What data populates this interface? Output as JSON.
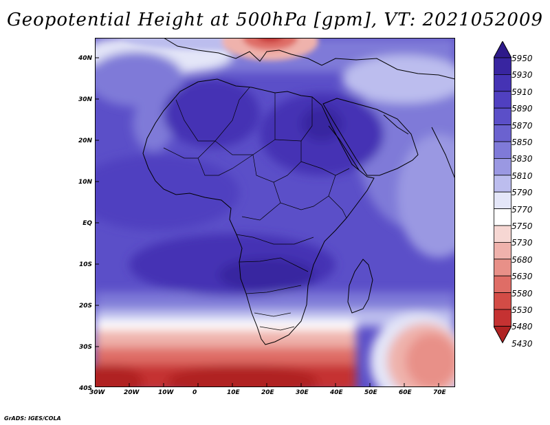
{
  "title": "Geopotential Height at 500hPa [gpm], VT: 2021052009",
  "footer": "GrADS: IGES/COLA",
  "lon_labels": [
    "30W",
    "20W",
    "10W",
    "0",
    "10E",
    "20E",
    "30E",
    "40E",
    "50E",
    "60E",
    "70E"
  ],
  "lat_labels": [
    "40N",
    "30N",
    "20N",
    "10N",
    "EQ",
    "10S",
    "20S",
    "30S",
    "40S"
  ],
  "colorbar": {
    "levels": [
      "5950",
      "5930",
      "5910",
      "5890",
      "5870",
      "5850",
      "5830",
      "5810",
      "5790",
      "5770",
      "5750",
      "5730",
      "5680",
      "5630",
      "5580",
      "5530",
      "5480",
      "5430"
    ],
    "colors": [
      "#2e1a8a",
      "#3825a0",
      "#4533b4",
      "#5040c0",
      "#5b4fc8",
      "#6b62cf",
      "#7f7ad8",
      "#9a98e2",
      "#bcbdee",
      "#e4e6f8",
      "#ffffff",
      "#f6d7d3",
      "#efb2ac",
      "#e89088",
      "#df6d66",
      "#d34c46",
      "#c53232",
      "#b02323"
    ]
  }
}
